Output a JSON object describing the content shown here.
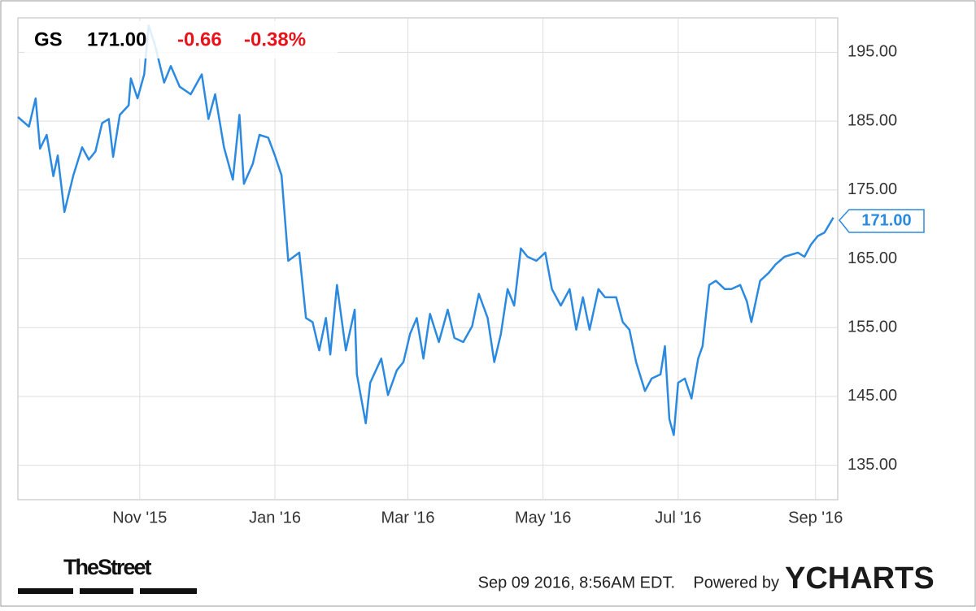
{
  "chart_data": {
    "type": "line",
    "symbol": "GS",
    "price": "171.00",
    "change": "-0.66",
    "change_pct": "-0.38%",
    "x": [
      0,
      5,
      8,
      10,
      13,
      16,
      18,
      21,
      25,
      29,
      32,
      35,
      38,
      41,
      43,
      46,
      50,
      51,
      54,
      57,
      59,
      62,
      66,
      69,
      73,
      78,
      83,
      86,
      89,
      93,
      97,
      100,
      102,
      106,
      109,
      113,
      116,
      119,
      122,
      127,
      130,
      133,
      136,
      139,
      141,
      144,
      148,
      152,
      153,
      157,
      159,
      164,
      167,
      171,
      174,
      177,
      180,
      183,
      186,
      190,
      194,
      197,
      201,
      205,
      208,
      212,
      215,
      218,
      221,
      224,
      227,
      230,
      234,
      238,
      241,
      245,
      249,
      252,
      255,
      258,
      262,
      265,
      270,
      273,
      276,
      279,
      283,
      286,
      290,
      292,
      294,
      296,
      298,
      301,
      304,
      307,
      309,
      312,
      315,
      319,
      322,
      326,
      329,
      331,
      335,
      339,
      342,
      346,
      352,
      355,
      358,
      361,
      364,
      368
    ],
    "series": [
      {
        "name": "GS",
        "color": "#2b8ae0",
        "values": [
          185.6,
          184.2,
          188.3,
          181,
          183,
          177,
          180,
          171.8,
          177.1,
          181.2,
          179.4,
          180.6,
          184.7,
          185.3,
          179.8,
          185.9,
          187.3,
          191.2,
          188.3,
          191.8,
          198.9,
          195.9,
          190.6,
          193,
          190,
          188.9,
          191.8,
          185.3,
          188.9,
          181.2,
          176.5,
          185.9,
          175.9,
          178.8,
          183,
          182.6,
          180,
          177.1,
          164.7,
          165.9,
          156.4,
          155.8,
          151.7,
          156.4,
          151.1,
          161.2,
          151.7,
          157.6,
          148.2,
          141.1,
          147,
          150.5,
          145.2,
          148.8,
          150,
          154.1,
          156.4,
          150.5,
          157,
          152.9,
          157.6,
          153.5,
          152.9,
          155.2,
          159.9,
          156.4,
          150,
          154.1,
          160.6,
          158.2,
          166.5,
          165.3,
          164.7,
          165.9,
          160.6,
          158.2,
          160.6,
          154.7,
          159.4,
          154.7,
          160.6,
          159.4,
          159.4,
          155.8,
          154.7,
          150,
          145.8,
          147.6,
          148.2,
          152.3,
          141.7,
          139.4,
          147,
          147.6,
          144.7,
          150.5,
          152.3,
          161.2,
          161.8,
          160.6,
          160.6,
          161.2,
          158.8,
          155.8,
          161.8,
          163,
          164.2,
          165.3,
          165.9,
          165.3,
          167.1,
          168.3,
          168.8,
          171
        ]
      }
    ],
    "xlim": [
      0,
      370
    ],
    "xticks": [
      {
        "value": 55,
        "label": "Nov '15"
      },
      {
        "value": 116,
        "label": "Jan '16"
      },
      {
        "value": 176,
        "label": "Mar '16"
      },
      {
        "value": 237,
        "label": "May '16"
      },
      {
        "value": 298,
        "label": "Jul '16"
      },
      {
        "value": 360,
        "label": "Sep '16"
      }
    ],
    "ylim": [
      130,
      200
    ],
    "yticks": [
      {
        "value": 135,
        "label": "135.00"
      },
      {
        "value": 145,
        "label": "145.00"
      },
      {
        "value": 155,
        "label": "155.00"
      },
      {
        "value": 165,
        "label": "165.00"
      },
      {
        "value": 175,
        "label": "175.00"
      },
      {
        "value": 185,
        "label": "185.00"
      },
      {
        "value": 195,
        "label": "195.00"
      }
    ],
    "grid": true,
    "timestamp": "Sep 09 2016, 8:56AM EDT.",
    "powered_by": "Powered by",
    "brand": "YCHARTS",
    "source": "TheStreet"
  }
}
